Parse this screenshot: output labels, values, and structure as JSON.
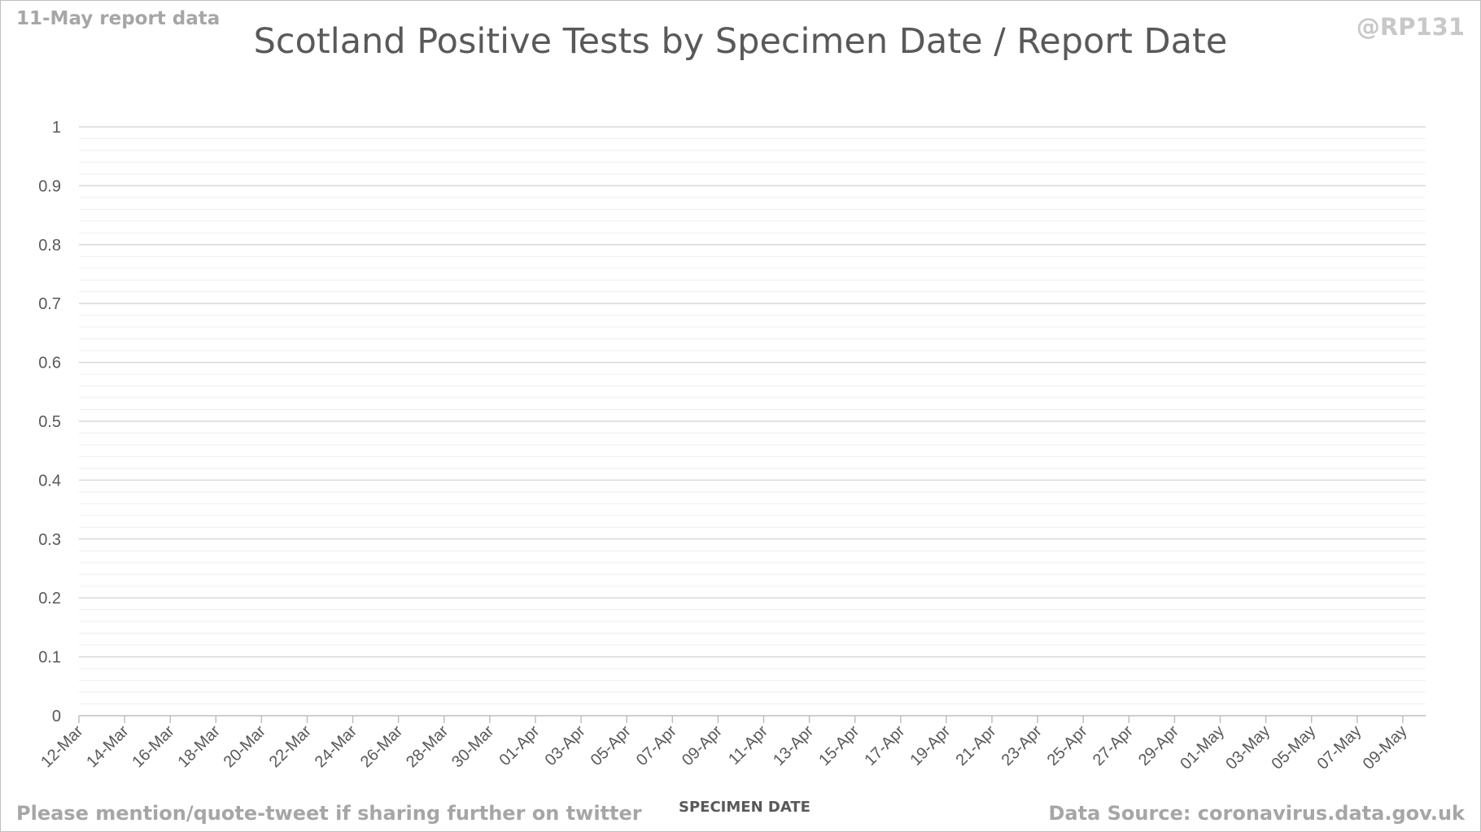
{
  "header": {
    "report_label": "11-May report data",
    "handle": "@RP131"
  },
  "footer": {
    "share_note": "Please mention/quote-tweet if sharing further on twitter",
    "source": "Data Source: coronavirus.data.gov.uk"
  },
  "chart_data": {
    "type": "bar",
    "title": "Scotland Positive Tests by Specimen Date / Report Date",
    "xlabel": "SPECIMEN DATE",
    "ylabel": "",
    "ylim": [
      0,
      1
    ],
    "yticks": [
      "0",
      "0.1",
      "0.2",
      "0.3",
      "0.4",
      "0.5",
      "0.6",
      "0.7",
      "0.8",
      "0.9",
      "1"
    ],
    "xticks": [
      "12-Mar",
      "14-Mar",
      "16-Mar",
      "18-Mar",
      "20-Mar",
      "22-Mar",
      "24-Mar",
      "26-Mar",
      "28-Mar",
      "30-Mar",
      "01-Apr",
      "03-Apr",
      "05-Apr",
      "07-Apr",
      "09-Apr",
      "11-Apr",
      "13-Apr",
      "15-Apr",
      "17-Apr",
      "19-Apr",
      "21-Apr",
      "23-Apr",
      "25-Apr",
      "27-Apr",
      "29-Apr",
      "01-May",
      "03-May",
      "05-May",
      "07-May",
      "09-May"
    ],
    "grid": true,
    "series": []
  }
}
